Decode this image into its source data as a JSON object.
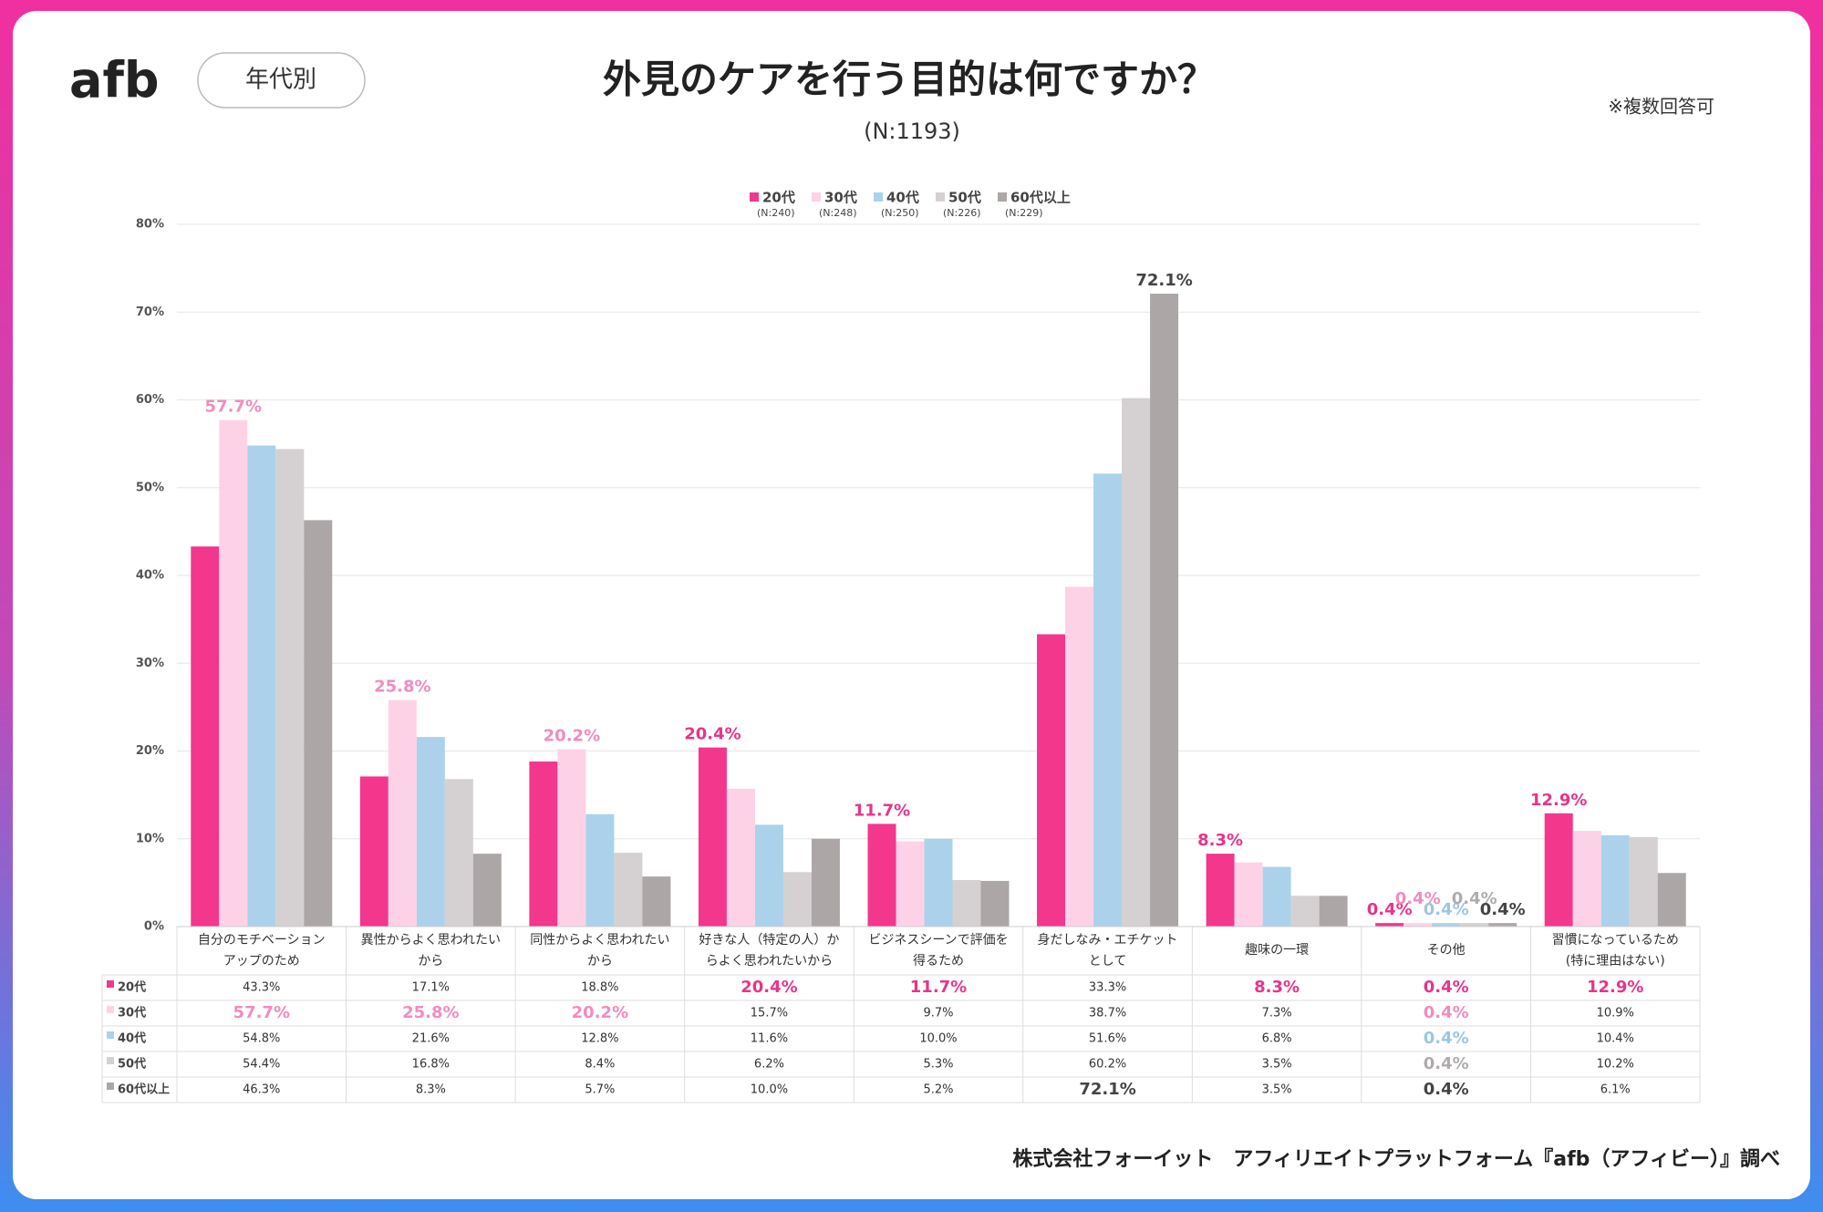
{
  "logo": "afb",
  "badge": "年代別",
  "note": "※複数回答可",
  "footer": "株式会社フォーイット　アフィリエイトプラットフォーム『afb（アフィビー）』調べ",
  "chart_data": {
    "type": "bar",
    "title": "外見のケアを行う目的は何ですか？",
    "subtitle": "(N:1193)",
    "categories": [
      "自分のモチベーション\nアップのため",
      "異性からよく思われたい\nから",
      "同性からよく思われたい\nから",
      "好きな人（特定の人）か\nらよく思われたいから",
      "ビジネスシーンで評価を\n得るため",
      "身だしなみ・エチケット\nとして",
      "趣味の一環",
      "その他",
      "習慣になっているため\n(特に理由はない)"
    ],
    "series": [
      {
        "name": "20代",
        "n_label": "(N:240)",
        "color": "#f2378d",
        "label_color": "#e83489",
        "values": [
          43.3,
          17.1,
          18.8,
          20.4,
          11.7,
          33.3,
          8.3,
          0.4,
          12.9
        ],
        "value_labels": [
          "43.3%",
          "17.1%",
          "18.8%",
          "20.4%",
          "11.7%",
          "33.3%",
          "8.3%",
          "0.4%",
          "12.9%"
        ]
      },
      {
        "name": "30代",
        "n_label": "(N:248)",
        "color": "#fdd2e7",
        "label_color": "#f08cbf",
        "values": [
          57.7,
          25.8,
          20.2,
          15.7,
          9.7,
          38.7,
          7.3,
          0.4,
          10.9
        ],
        "value_labels": [
          "57.7%",
          "25.8%",
          "20.2%",
          "15.7%",
          "9.7%",
          "38.7%",
          "7.3%",
          "0.4%",
          "10.9%"
        ]
      },
      {
        "name": "40代",
        "n_label": "(N:250)",
        "color": "#abd2ea",
        "label_color": "#9cc6e2",
        "values": [
          54.8,
          21.6,
          12.8,
          11.6,
          10.0,
          51.6,
          6.8,
          0.4,
          10.4
        ],
        "value_labels": [
          "54.8%",
          "21.6%",
          "12.8%",
          "11.6%",
          "10.0%",
          "51.6%",
          "6.8%",
          "0.4%",
          "10.4%"
        ]
      },
      {
        "name": "50代",
        "n_label": "(N:226)",
        "color": "#d5d0d1",
        "label_color": "#b0acad",
        "values": [
          54.4,
          16.8,
          8.4,
          6.2,
          5.3,
          60.2,
          3.5,
          0.4,
          10.2
        ],
        "value_labels": [
          "54.4%",
          "16.8%",
          "8.4%",
          "6.2%",
          "5.3%",
          "60.2%",
          "3.5%",
          "0.4%",
          "10.2%"
        ]
      },
      {
        "name": "60代以上",
        "n_label": "(N:229)",
        "color": "#aca7a6",
        "label_color": "#444444",
        "values": [
          46.3,
          8.3,
          5.7,
          10.0,
          5.2,
          72.1,
          3.5,
          0.4,
          6.1
        ],
        "value_labels": [
          "46.3%",
          "8.3%",
          "5.7%",
          "10.0%",
          "5.2%",
          "72.1%",
          "3.5%",
          "0.4%",
          "6.1%"
        ]
      }
    ],
    "ylim": [
      0,
      80
    ],
    "yticks": [
      {
        "value": 0,
        "label": "0%"
      },
      {
        "value": 10,
        "label": "10%"
      },
      {
        "value": 20,
        "label": "20%"
      },
      {
        "value": 30,
        "label": "30%"
      },
      {
        "value": 40,
        "label": "40%"
      },
      {
        "value": 50,
        "label": "50%"
      },
      {
        "value": 60,
        "label": "60%"
      },
      {
        "value": 70,
        "label": "70%"
      },
      {
        "value": 80,
        "label": "80%"
      }
    ],
    "grid": true
  }
}
